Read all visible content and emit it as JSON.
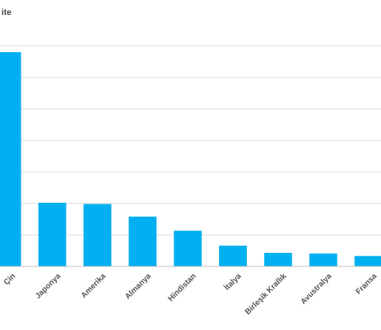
{
  "chart_data": {
    "type": "bar",
    "title": "ite",
    "categories": [
      "Çin",
      "Japonya",
      "Amerika",
      "Almanya",
      "Hindistan",
      "İtalya",
      "Birleşik Krallık",
      "Avustralya",
      "Fransa"
    ],
    "values": [
      68,
      20.2,
      19.8,
      15.8,
      11.3,
      6.6,
      4.3,
      4.1,
      3.3
    ],
    "ylim": [
      0,
      70
    ],
    "grid": true,
    "legend": "none",
    "bar_color": "#00b0f0"
  }
}
